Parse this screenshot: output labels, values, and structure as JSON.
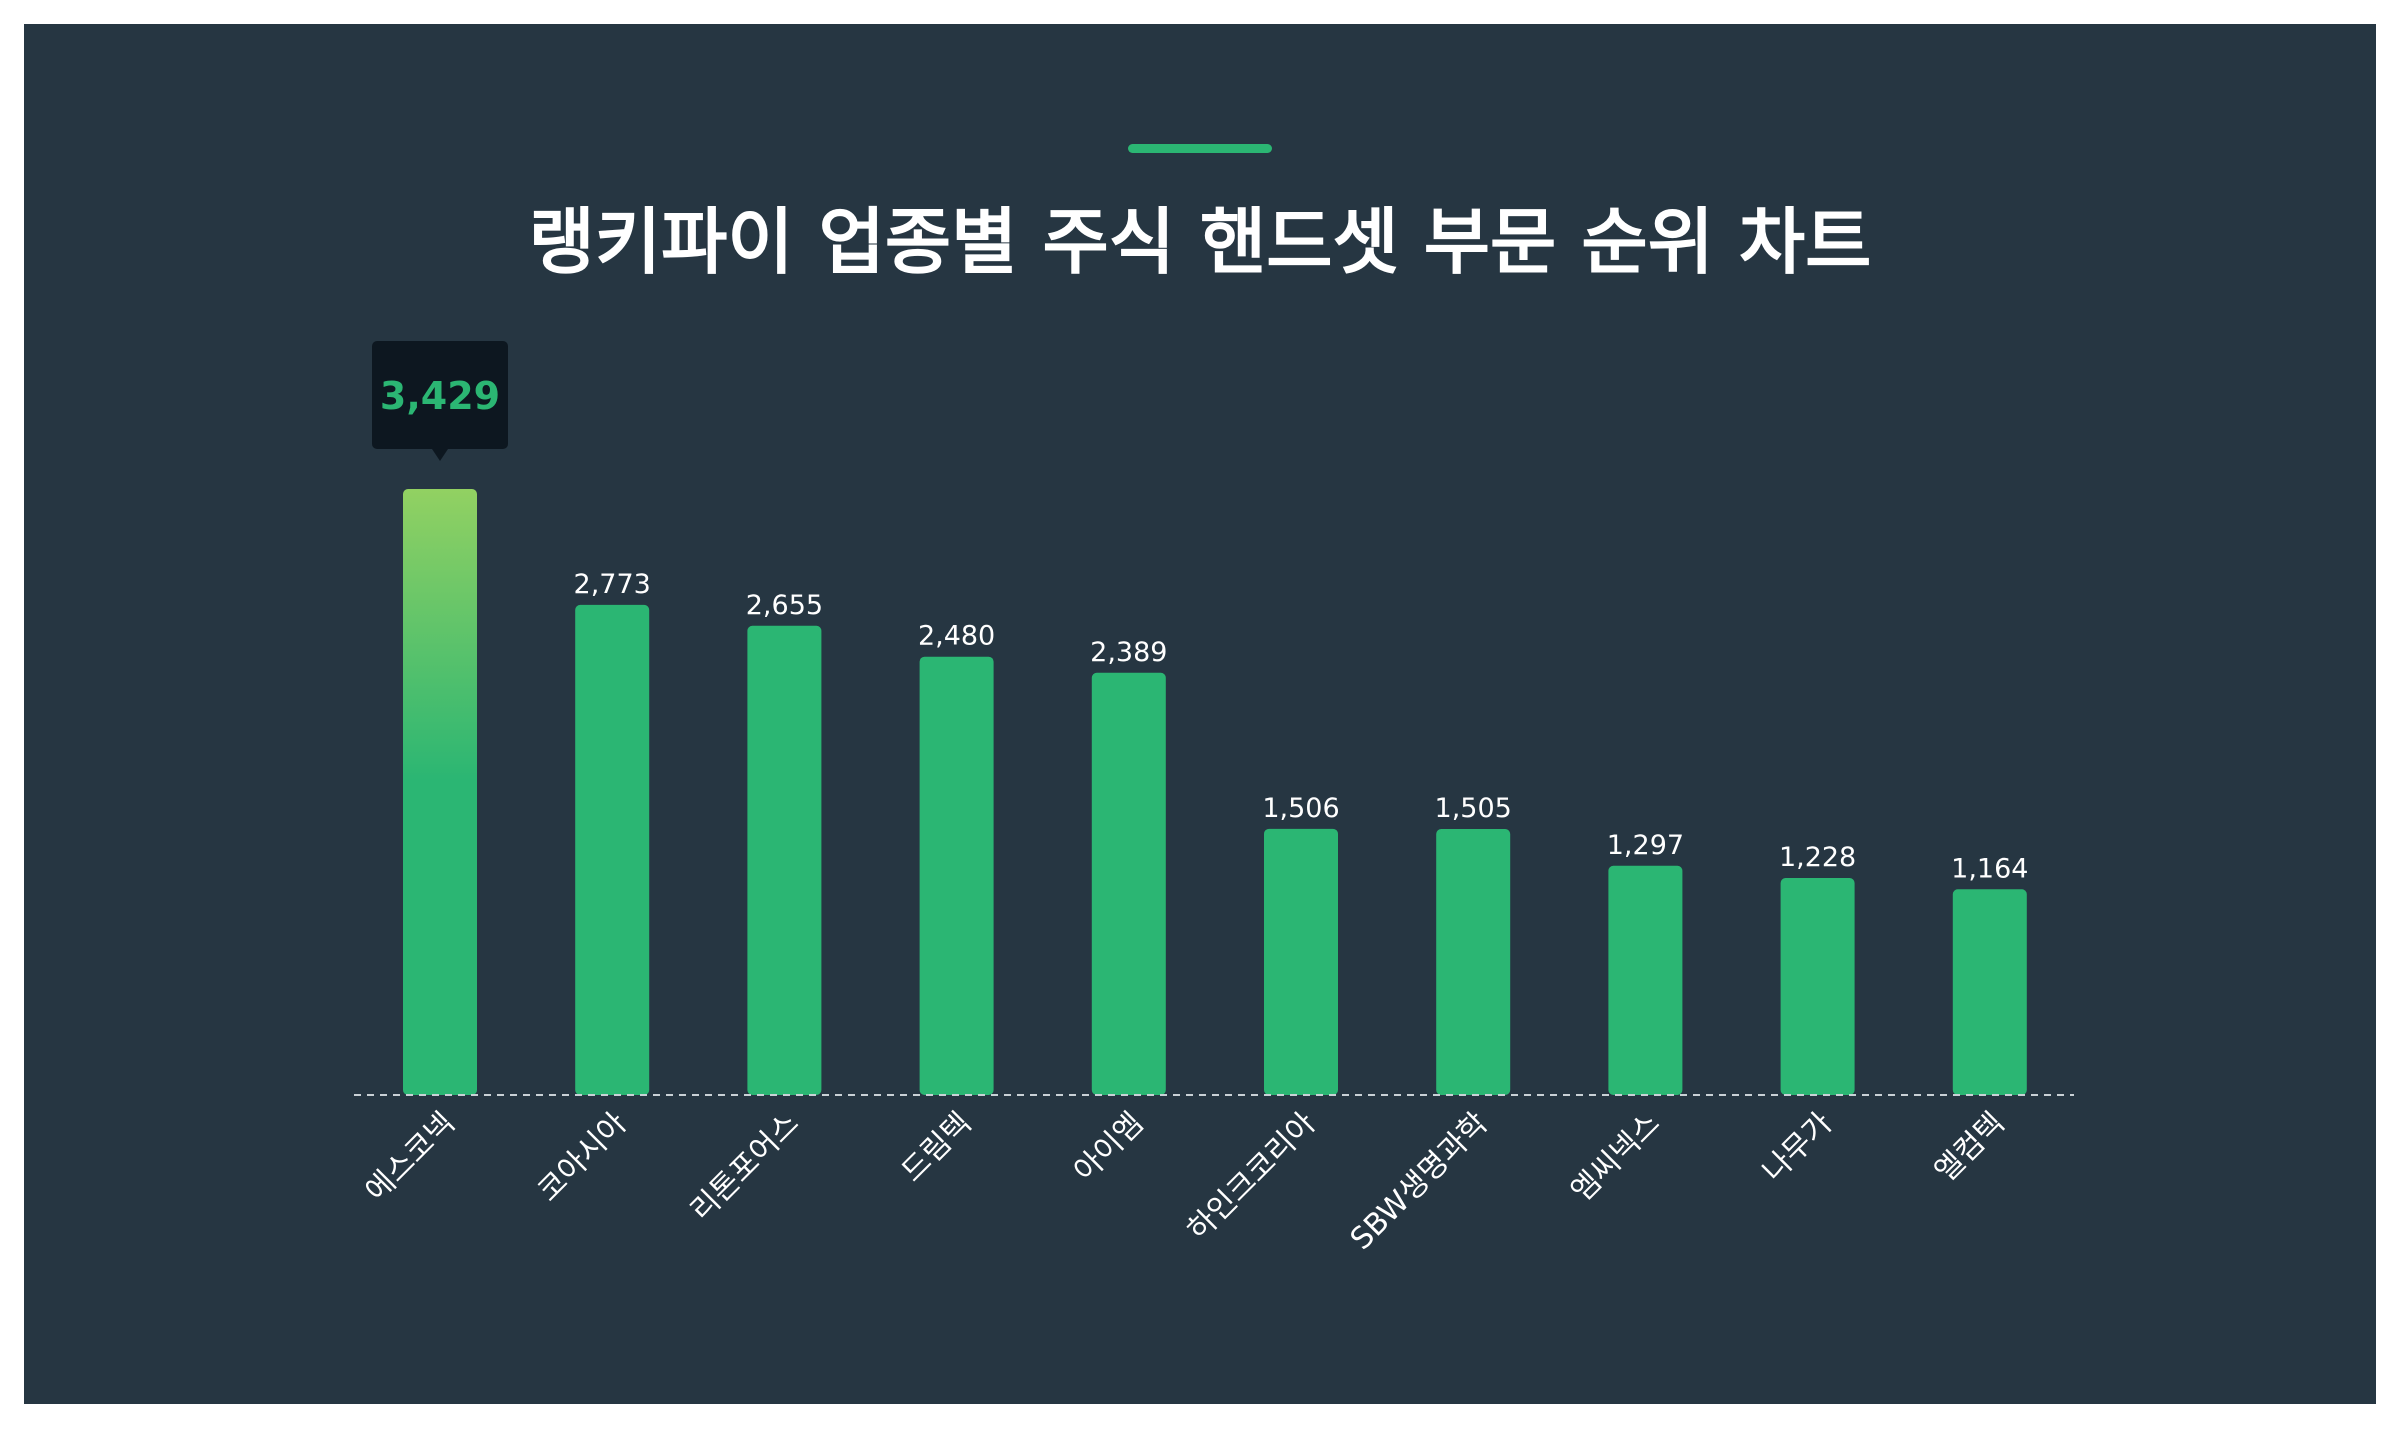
{
  "chart_data": {
    "type": "bar",
    "title": "랭키파이 업종별 주식 핸드셋 부문 순위 차트",
    "categories": [
      "에스코넥",
      "코아시아",
      "리톤포어스",
      "드림텍",
      "아이엠",
      "하인크코리아",
      "SBW생명과학",
      "엠씨넥스",
      "나무가",
      "엘컴텍"
    ],
    "values": [
      3429,
      2773,
      2655,
      2480,
      2389,
      1506,
      1505,
      1297,
      1228,
      1164
    ],
    "value_labels": [
      "3,429",
      "2,773",
      "2,655",
      "2,480",
      "2,389",
      "1,506",
      "1,505",
      "1,297",
      "1,228",
      "1,164"
    ],
    "highlight_index": 0,
    "ylim": [
      0,
      3429
    ],
    "xlabel": "",
    "ylabel": "",
    "grid": false,
    "legend": "none",
    "colors": {
      "background": "#263642",
      "bar": "#2bb673",
      "highlight_top": "#92d162",
      "highlight_bottom": "#2bb673",
      "tooltip_bg": "#0d1720",
      "tooltip_text": "#2bb673",
      "baseline": "#c9d1d6",
      "text": "#ffffff",
      "accent": "#2bb673"
    }
  }
}
